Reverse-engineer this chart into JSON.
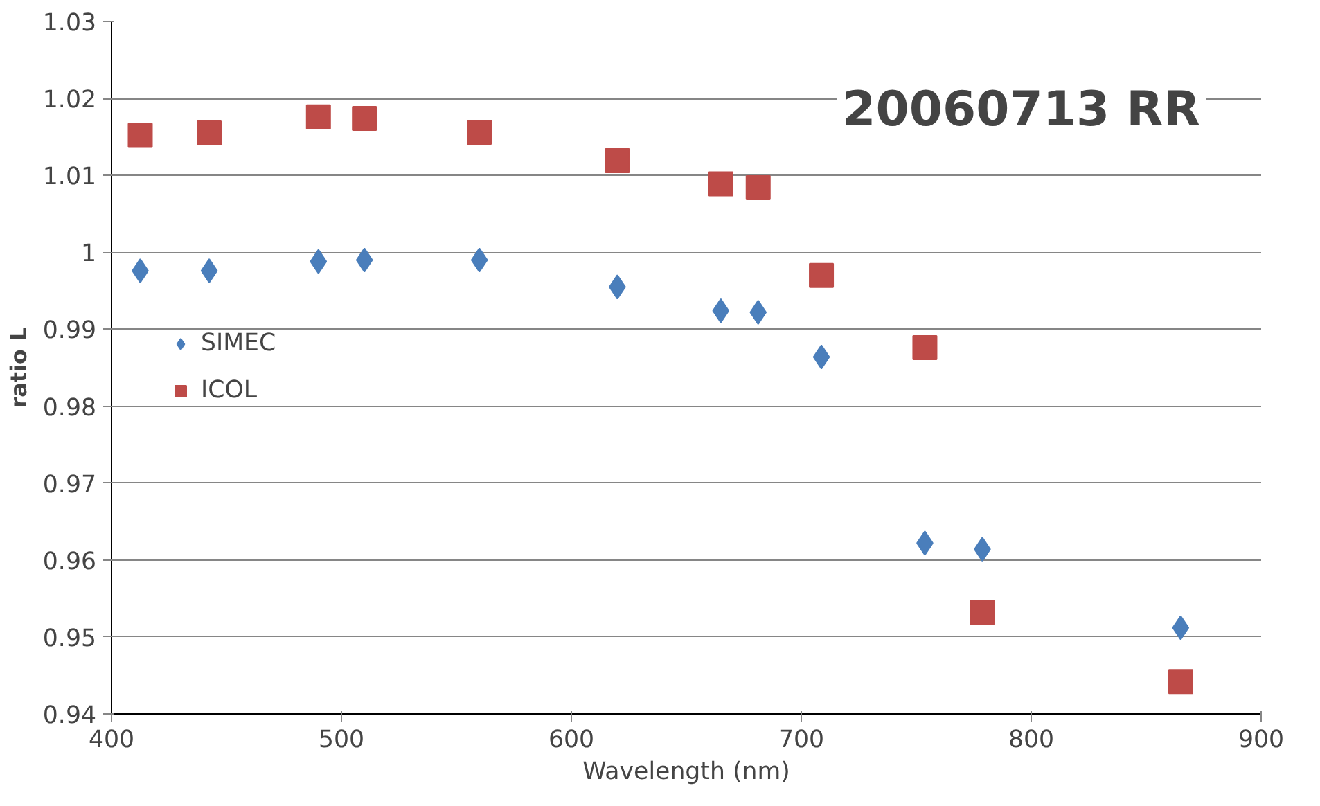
{
  "chart_data": {
    "type": "scatter",
    "title": "20060713 RR",
    "xlabel": "Wavelength (nm)",
    "ylabel": "ratio L",
    "x": [
      412.5,
      442.5,
      490,
      510,
      560,
      620,
      665,
      681.25,
      708.75,
      753.75,
      778.75,
      865
    ],
    "series": [
      {
        "name": "SIMEC",
        "color": "#4a7ebb",
        "marker": "diamond",
        "values": [
          0.9976,
          0.9976,
          0.9988,
          0.999,
          0.999,
          0.9955,
          0.9924,
          0.9922,
          0.9864,
          0.9622,
          0.9614,
          0.9512
        ]
      },
      {
        "name": "ICOL",
        "color": "#be4b48",
        "marker": "square",
        "values": [
          1.0152,
          1.0155,
          1.0176,
          1.0174,
          1.0156,
          1.0119,
          1.0089,
          1.0084,
          0.997,
          0.9876,
          0.9532,
          0.9442
        ]
      }
    ],
    "xlim": [
      400,
      900
    ],
    "xticks": [
      400,
      500,
      600,
      700,
      800,
      900
    ],
    "ylim": [
      0.94,
      1.03
    ],
    "yticks": [
      0.94,
      0.95,
      0.96,
      0.97,
      0.98,
      0.99,
      {
        "value": 1,
        "label": "1"
      },
      1.01,
      1.02,
      1.03
    ],
    "grid": "y",
    "legend": "left"
  }
}
